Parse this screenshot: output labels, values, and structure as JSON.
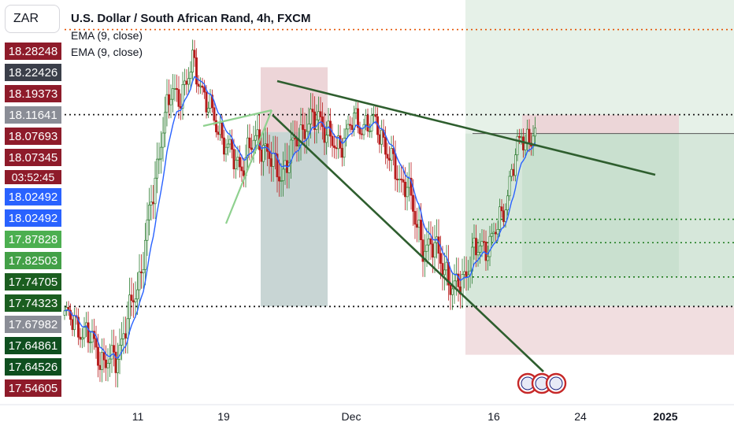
{
  "symbol": "ZAR",
  "chart_title": "U.S. Dollar / South African Rand, 4h, FXCM",
  "indicators": [
    "EMA (9, close)",
    "EMA (9, close)"
  ],
  "price_tags": [
    {
      "label": "18.28248",
      "color": "#8e1b2a"
    },
    {
      "label": "18.22426",
      "color": "#3b3f4a"
    },
    {
      "label": "18.19373",
      "color": "#8e1b2a"
    },
    {
      "label": "18.11641",
      "color": "#8a8d96"
    },
    {
      "label": "18.07693",
      "color": "#8e1b2a"
    },
    {
      "label": "18.07345",
      "color": "#8e1b2a"
    },
    {
      "label": "03:52:45",
      "color": "#8e1b2a"
    },
    {
      "label": "18.02492",
      "color": "#2962ff"
    },
    {
      "label": "18.02492",
      "color": "#2962ff"
    },
    {
      "label": "17.87828",
      "color": "#4caf50"
    },
    {
      "label": "17.82503",
      "color": "#43a047"
    },
    {
      "label": "17.74705",
      "color": "#1b5e20"
    },
    {
      "label": "17.74323",
      "color": "#1b5e20"
    },
    {
      "label": "17.67982",
      "color": "#8a8d96"
    },
    {
      "label": "17.64861",
      "color": "#0f4f1f"
    },
    {
      "label": "17.64526",
      "color": "#0f4f1f"
    },
    {
      "label": "17.54605",
      "color": "#8e1b2a"
    }
  ],
  "x_axis": {
    "labels": [
      {
        "text": "11",
        "year": false
      },
      {
        "text": "19",
        "year": false
      },
      {
        "text": "Dec",
        "year": false
      },
      {
        "text": "16",
        "year": false
      },
      {
        "text": "24",
        "year": false
      },
      {
        "text": "2025",
        "year": true
      }
    ]
  },
  "colors": {
    "up_candle": "#2e7d32",
    "down_candle": "#b71c1c",
    "ema": "#2962ff",
    "trendline": "#2e5e2e",
    "dotted_level": "#1a1a1a",
    "green_dotted": "#1b7a1b",
    "orange_dotted": "#e65100",
    "profit_zone": "#c8dfcd",
    "loss_zone": "#ecd3d6"
  },
  "chart_data": {
    "type": "candlestick",
    "symbol": "USD/ZAR",
    "title": "U.S. Dollar / South African Rand, 4h, FXCM",
    "timeframe": "4h",
    "source": "FXCM",
    "indicators": [
      "EMA (9, close)",
      "EMA (9, close)"
    ],
    "ylim": [
      17.46,
      18.32
    ],
    "price_levels": [
      18.28248,
      18.22426,
      18.19373,
      18.11641,
      18.07693,
      18.07345,
      18.02492,
      17.87828,
      17.82503,
      17.74705,
      17.74323,
      17.67982,
      17.64861,
      17.64526,
      17.54605
    ],
    "x_tick_labels": [
      "11",
      "19",
      "Dec",
      "16",
      "24",
      "2025"
    ],
    "close_path": [
      [
        0,
        17.66
      ],
      [
        8,
        17.63
      ],
      [
        14,
        17.6
      ],
      [
        20,
        17.55
      ],
      [
        26,
        17.56
      ],
      [
        30,
        17.62
      ],
      [
        34,
        17.68
      ],
      [
        38,
        17.74
      ],
      [
        42,
        17.86
      ],
      [
        46,
        17.96
      ],
      [
        50,
        18.1
      ],
      [
        54,
        18.16
      ],
      [
        58,
        18.16
      ],
      [
        62,
        18.19
      ],
      [
        65,
        18.23
      ],
      [
        68,
        18.2
      ],
      [
        72,
        18.15
      ],
      [
        76,
        18.1
      ],
      [
        80,
        18.07
      ],
      [
        84,
        18.03
      ],
      [
        88,
        18.0
      ],
      [
        91,
        18.01
      ],
      [
        94,
        18.04
      ],
      [
        98,
        18.06
      ],
      [
        102,
        18.04
      ],
      [
        106,
        18.0
      ],
      [
        110,
        17.98
      ],
      [
        114,
        18.02
      ],
      [
        118,
        18.06
      ],
      [
        122,
        18.09
      ],
      [
        126,
        18.1
      ],
      [
        130,
        18.11
      ],
      [
        134,
        18.07
      ],
      [
        138,
        18.03
      ],
      [
        142,
        18.07
      ],
      [
        146,
        18.1
      ],
      [
        150,
        18.09
      ],
      [
        154,
        18.1
      ],
      [
        158,
        18.09
      ],
      [
        162,
        18.06
      ],
      [
        166,
        18.01
      ],
      [
        170,
        17.96
      ],
      [
        174,
        17.97
      ],
      [
        178,
        17.87
      ],
      [
        182,
        17.82
      ],
      [
        185,
        17.82
      ],
      [
        188,
        17.81
      ],
      [
        191,
        17.79
      ],
      [
        194,
        17.76
      ],
      [
        197,
        17.71
      ],
      [
        200,
        17.73
      ],
      [
        204,
        17.76
      ],
      [
        208,
        17.8
      ],
      [
        212,
        17.82
      ],
      [
        216,
        17.82
      ],
      [
        220,
        17.86
      ],
      [
        224,
        17.92
      ],
      [
        228,
        18.0
      ],
      [
        232,
        18.07
      ],
      [
        236,
        18.06
      ],
      [
        239,
        18.07
      ]
    ]
  }
}
